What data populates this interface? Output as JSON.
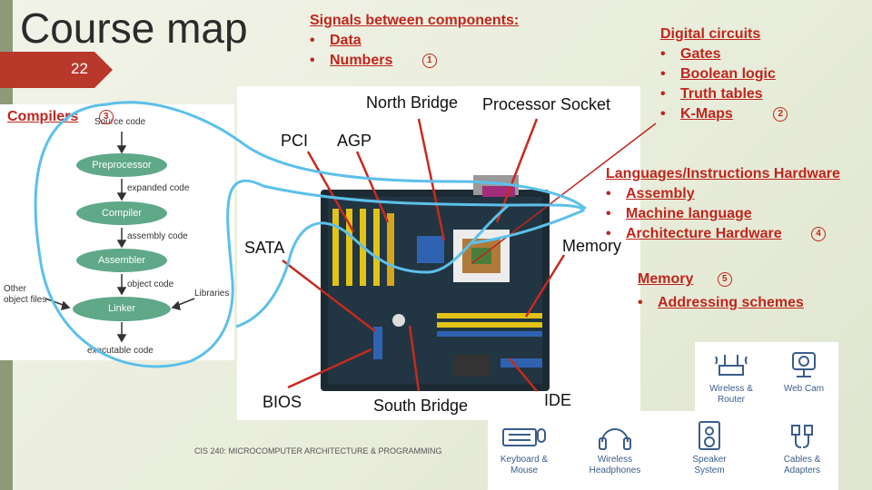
{
  "title": "Course map",
  "slide_number": "22",
  "footer": "CIS 240: MICROCOMPUTER ARCHITECTURE & PROGRAMMING",
  "signals": {
    "heading": "Signals between components:",
    "items": [
      "Data",
      "Numbers"
    ],
    "badge": "1"
  },
  "digital": {
    "heading": "Digital circuits",
    "items": [
      "Gates",
      "Boolean logic",
      "Truth tables",
      "K-Maps"
    ],
    "badge": "2"
  },
  "compilers": {
    "heading": "Compilers",
    "badge": "3"
  },
  "languages": {
    "heading": "Languages/Instructions Hardware",
    "items": [
      "Assembly",
      "Machine language",
      "Architecture Hardware"
    ],
    "badge": "4"
  },
  "memory": {
    "heading": "Memory",
    "items": [
      "Addressing schemes"
    ],
    "badge": "5"
  },
  "compiler_flow": {
    "source": "Source code",
    "nodes": [
      "Preprocessor",
      "Compiler",
      "Assembler",
      "Linker"
    ],
    "edges": [
      "expanded code",
      "assembly code",
      "object code"
    ],
    "other": "Other object files",
    "libraries": "Libraries",
    "output": "executable code"
  },
  "motherboard_labels": {
    "north_bridge": "North Bridge",
    "processor_socket": "Processor Socket",
    "pci": "PCI",
    "agp": "AGP",
    "sata": "SATA",
    "memory": "Memory",
    "bios": "BIOS",
    "south_bridge": "South Bridge",
    "ide": "IDE"
  },
  "devices": [
    "Wireless & Router",
    "Web Cam",
    "Keyboard & Mouse",
    "Wireless Headphones",
    "Speaker System",
    "Cables & Adapters"
  ],
  "colors": {
    "accent": "#c0251c",
    "bar": "#8d9a78",
    "scribble": "#5cc0ea",
    "flow": "#5fa888"
  }
}
